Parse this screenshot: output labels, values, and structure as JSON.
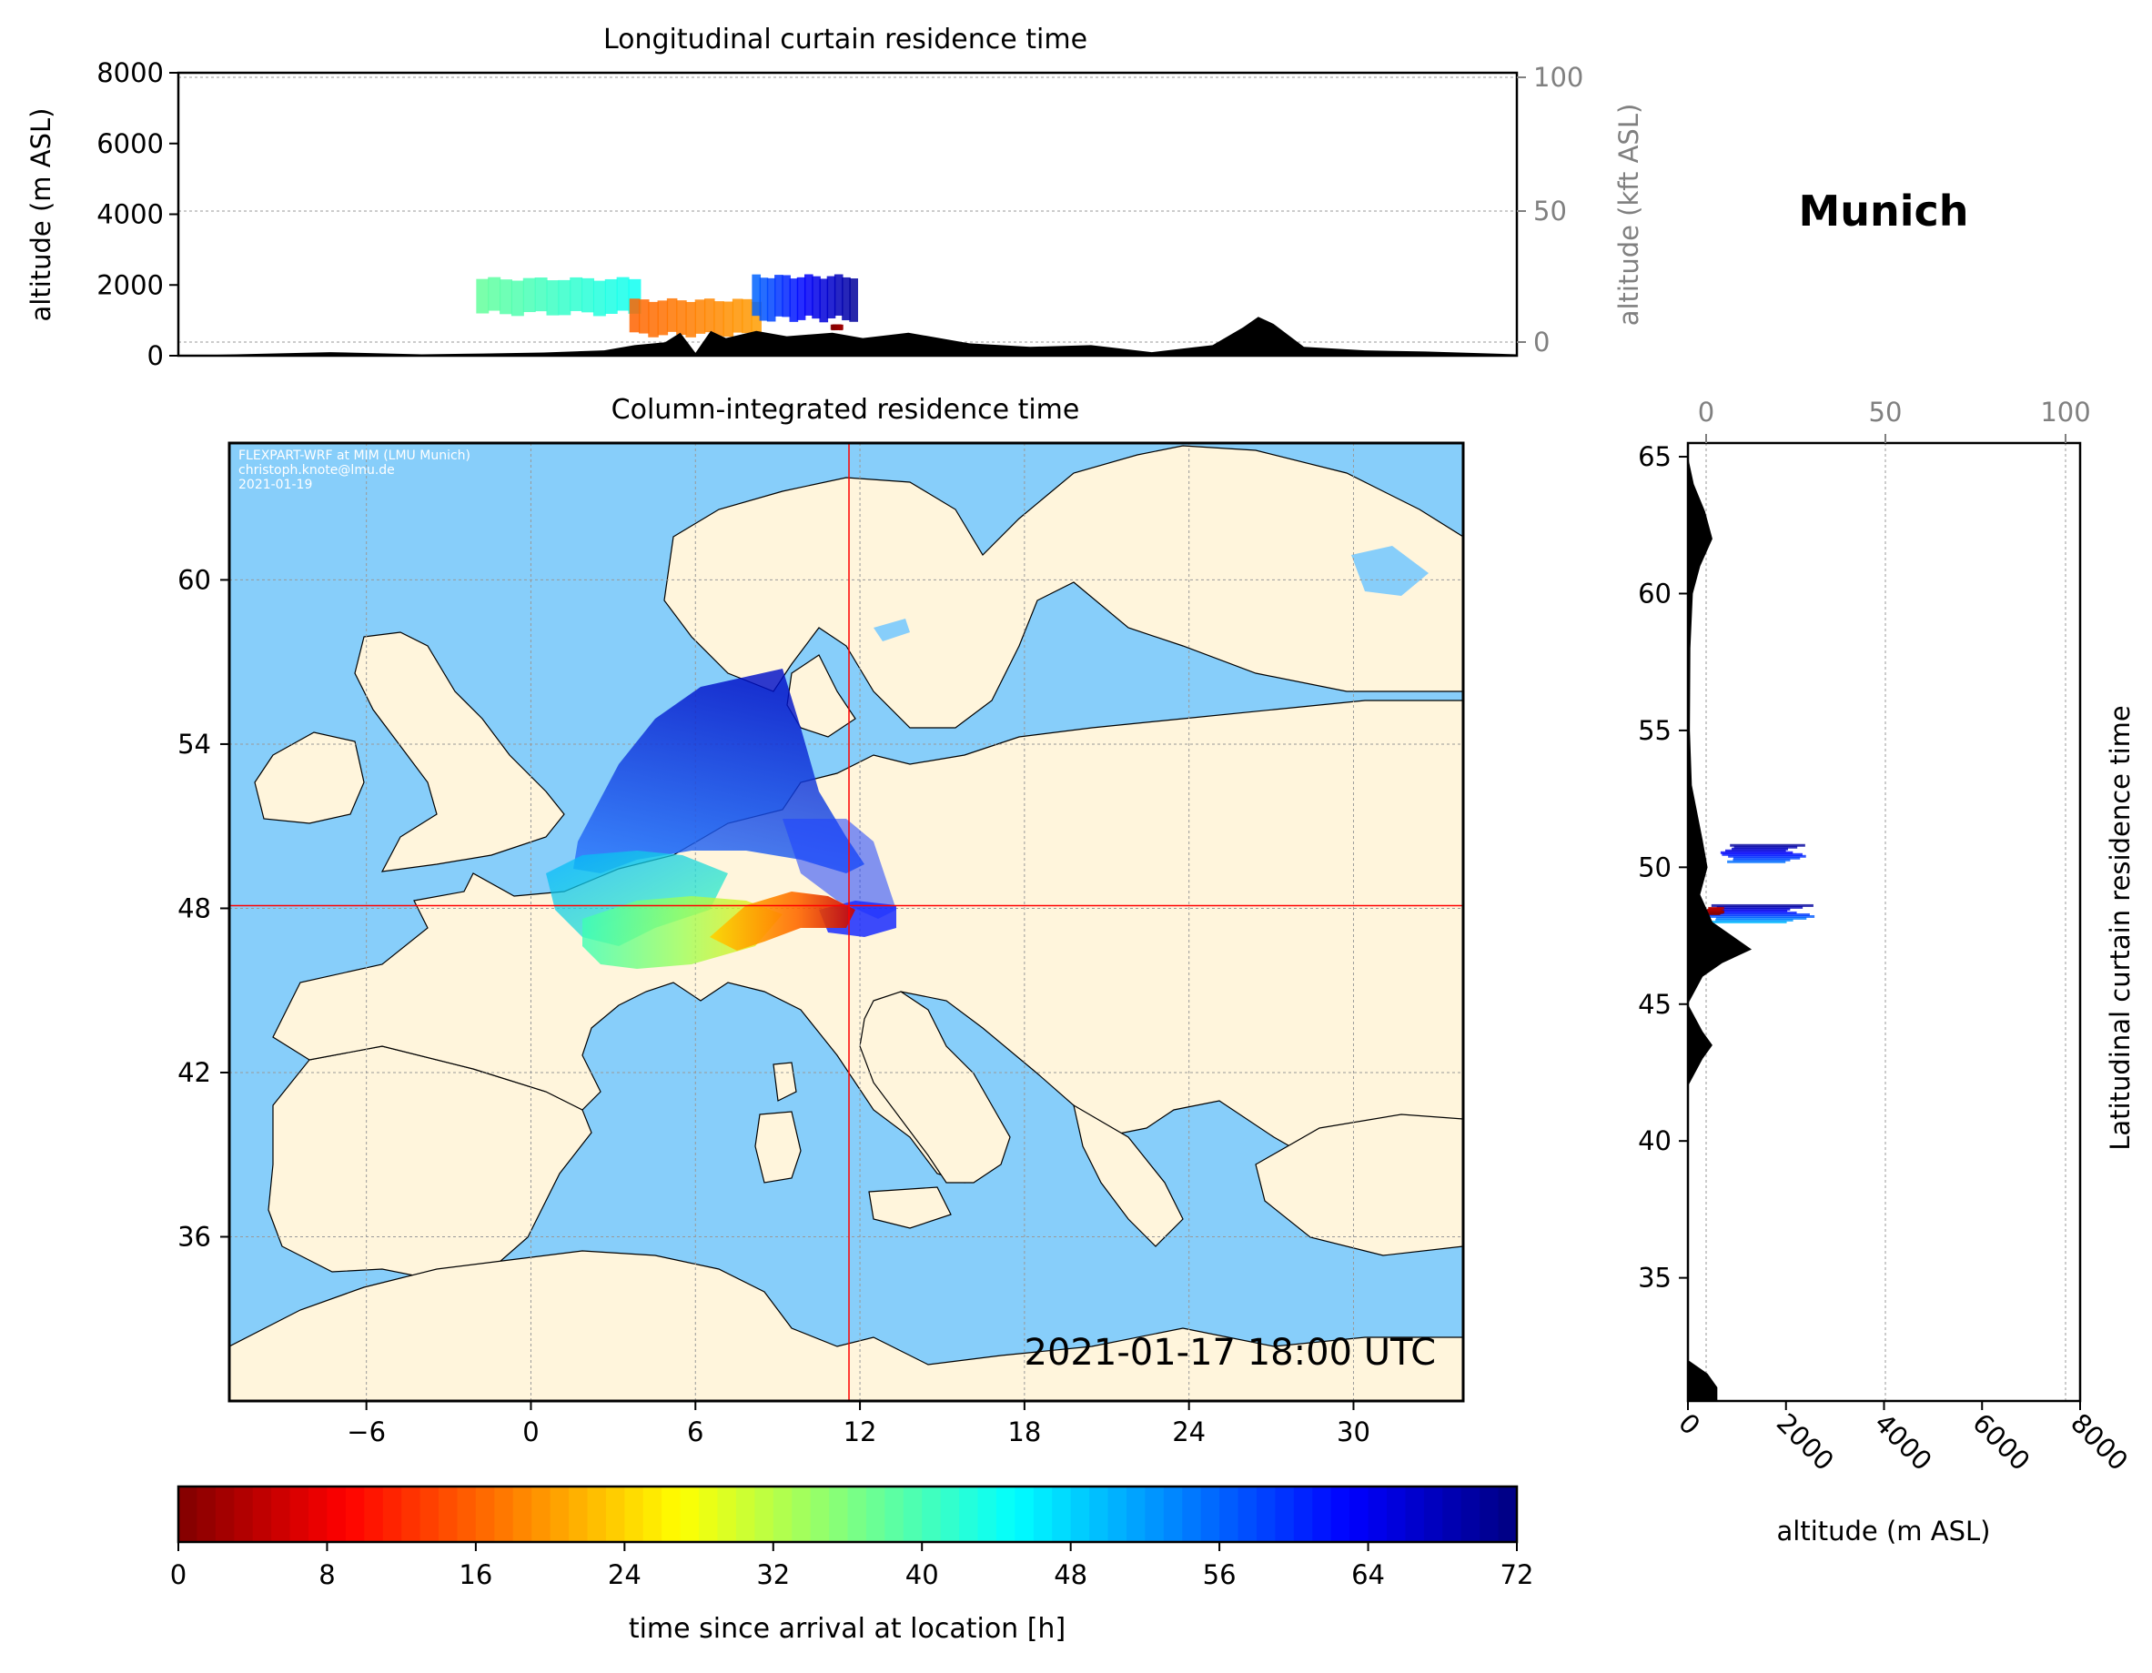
{
  "location": "Munich",
  "timestamp": "2021-01-17 18:00 UTC",
  "credit": [
    "FLEXPART-WRF at MIM (LMU Munich)",
    "christoph.knote@lmu.de",
    "2021-01-19"
  ],
  "colors": {
    "ocean": "#87cefa",
    "land": "#fff5dc",
    "crosshair": "#ff0000",
    "terrain": "#000000"
  },
  "chart_data": [
    {
      "type": "heatmap",
      "title": "Longitudinal curtain residence time",
      "ylabel": "altitude (m ASL)",
      "ylabel_right": "altitude (kft ASL)",
      "ylim": [
        0,
        8000
      ],
      "yticks": [
        "0",
        "2000",
        "4000",
        "6000",
        "8000"
      ],
      "yticks_right": [
        "0",
        "50",
        "100"
      ],
      "xlim": [
        -10,
        34
      ],
      "terrain_lon_alt": [
        [
          -10,
          0
        ],
        [
          -5,
          100
        ],
        [
          -2,
          40
        ],
        [
          0,
          60
        ],
        [
          2,
          90
        ],
        [
          4,
          150
        ],
        [
          5,
          300
        ],
        [
          6,
          380
        ],
        [
          6.5,
          650
        ],
        [
          7,
          80
        ],
        [
          7.5,
          700
        ],
        [
          8,
          500
        ],
        [
          9,
          700
        ],
        [
          10,
          550
        ],
        [
          11.5,
          650
        ],
        [
          12.5,
          500
        ],
        [
          14,
          650
        ],
        [
          16,
          350
        ],
        [
          18,
          250
        ],
        [
          20,
          300
        ],
        [
          22,
          100
        ],
        [
          24,
          300
        ],
        [
          25,
          800
        ],
        [
          25.5,
          1100
        ],
        [
          26,
          900
        ],
        [
          27,
          250
        ],
        [
          29,
          150
        ],
        [
          31,
          120
        ],
        [
          34,
          40
        ]
      ],
      "plume_segments": [
        {
          "lon": [
            0,
            5
          ],
          "alt": [
            1000,
            2300
          ],
          "age_h": [
            38,
            44
          ]
        },
        {
          "lon": [
            5,
            9
          ],
          "alt": [
            400,
            1700
          ],
          "age_h": [
            16,
            20
          ]
        },
        {
          "lon": [
            9,
            12.2
          ],
          "alt": [
            800,
            2400
          ],
          "age_h": [
            56,
            70
          ]
        },
        {
          "lon": [
            11.5,
            11.8
          ],
          "alt": [
            700,
            900
          ],
          "age_h": [
            0,
            2
          ]
        }
      ]
    },
    {
      "type": "heatmap",
      "title": "Column-integrated residence time",
      "xlim": [
        -11,
        34
      ],
      "ylim": [
        30,
        65
      ],
      "xticks": [
        "−6",
        "0",
        "6",
        "12",
        "18",
        "24",
        "30"
      ],
      "yticks": [
        "36",
        "42",
        "48",
        "54",
        "60"
      ],
      "arrival_location": {
        "lon": 11.6,
        "lat": 48.1
      },
      "trajectory_fans": [
        {
          "from": [
            12.5,
            48.2
          ],
          "to": [
            7.5,
            48.4
          ],
          "age_h": [
            0,
            14
          ]
        },
        {
          "from": [
            9,
            48.2
          ],
          "to": [
            3.5,
            47
          ],
          "age_h": [
            14,
            30
          ]
        },
        {
          "from": [
            5,
            48
          ],
          "to": [
            1,
            49.5
          ],
          "age_h": [
            30,
            46
          ]
        },
        {
          "from": [
            4,
            50
          ],
          "to": [
            5,
            56
          ],
          "age_h": [
            48,
            70
          ]
        },
        {
          "from": [
            6,
            50
          ],
          "to": [
            10,
            52
          ],
          "age_h": [
            56,
            68
          ]
        },
        {
          "from": [
            11.5,
            49
          ],
          "to": [
            13.5,
            48
          ],
          "age_h": [
            58,
            64
          ]
        }
      ]
    },
    {
      "type": "heatmap",
      "title": "Latitudinal curtain residence time",
      "xlabel": "altitude (m ASL)",
      "ylim": [
        30.5,
        65.5
      ],
      "xlim": [
        0,
        8000
      ],
      "xticks": [
        "0",
        "2000",
        "4000",
        "6000",
        "8000"
      ],
      "xticks_top": [
        "0",
        "50",
        "100"
      ],
      "yticks": [
        "35",
        "40",
        "45",
        "50",
        "55",
        "60",
        "65"
      ],
      "terrain_lat_alt": [
        [
          65,
          0
        ],
        [
          64,
          120
        ],
        [
          63,
          350
        ],
        [
          62,
          500
        ],
        [
          61,
          250
        ],
        [
          60,
          100
        ],
        [
          58,
          50
        ],
        [
          55,
          40
        ],
        [
          53,
          80
        ],
        [
          51,
          300
        ],
        [
          50,
          400
        ],
        [
          49,
          250
        ],
        [
          48,
          500
        ],
        [
          47,
          1300
        ],
        [
          46.5,
          700
        ],
        [
          46,
          300
        ],
        [
          45,
          0
        ],
        [
          44,
          300
        ],
        [
          43.5,
          500
        ],
        [
          43,
          300
        ],
        [
          42,
          0
        ],
        [
          35,
          0
        ],
        [
          32,
          0
        ],
        [
          31.5,
          400
        ],
        [
          31,
          600
        ],
        [
          30.5,
          600
        ]
      ],
      "plume_segments": [
        {
          "lat": [
            50.2,
            50.8
          ],
          "alt": [
            800,
            2200
          ],
          "age_h": [
            55,
            70
          ]
        },
        {
          "lat": [
            48.0,
            48.6
          ],
          "alt": [
            400,
            2300
          ],
          "age_h": [
            50,
            70
          ]
        },
        {
          "lat": [
            48.3,
            48.5
          ],
          "alt": [
            400,
            700
          ],
          "age_h": [
            0,
            4
          ]
        }
      ]
    },
    {
      "type": "heatmap",
      "title": "",
      "xlabel": "time since arrival at location [h]",
      "colormap": "jet_r",
      "range": [
        0,
        72
      ],
      "ticks": [
        "0",
        "8",
        "16",
        "24",
        "32",
        "40",
        "48",
        "56",
        "64",
        "72"
      ]
    }
  ]
}
